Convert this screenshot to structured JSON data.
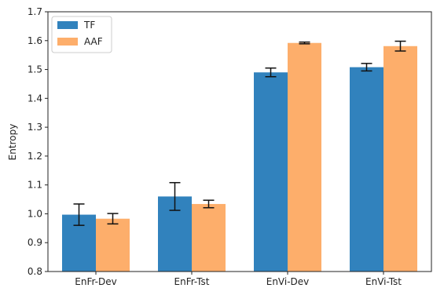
{
  "chart_data": {
    "type": "bar",
    "title": "",
    "xlabel": "",
    "ylabel": "Entropy",
    "ylim": [
      0.8,
      1.7
    ],
    "yticks": [
      "0.8",
      "0.9",
      "1.0",
      "1.1",
      "1.2",
      "1.3",
      "1.4",
      "1.5",
      "1.6",
      "1.7"
    ],
    "categories": [
      "EnFr-Dev",
      "EnFr-Tst",
      "EnVi-Dev",
      "EnVi-Tst"
    ],
    "series": [
      {
        "name": "TF",
        "color": "#3182bd",
        "values": [
          0.997,
          1.06,
          1.49,
          1.508
        ],
        "errors": [
          0.037,
          0.048,
          0.015,
          0.013
        ]
      },
      {
        "name": "AAF",
        "color": "#fdae6b",
        "values": [
          0.983,
          1.034,
          1.592,
          1.581
        ],
        "errors": [
          0.018,
          0.013,
          0.003,
          0.017
        ]
      }
    ],
    "legend_position": "top-left",
    "grid": false
  }
}
